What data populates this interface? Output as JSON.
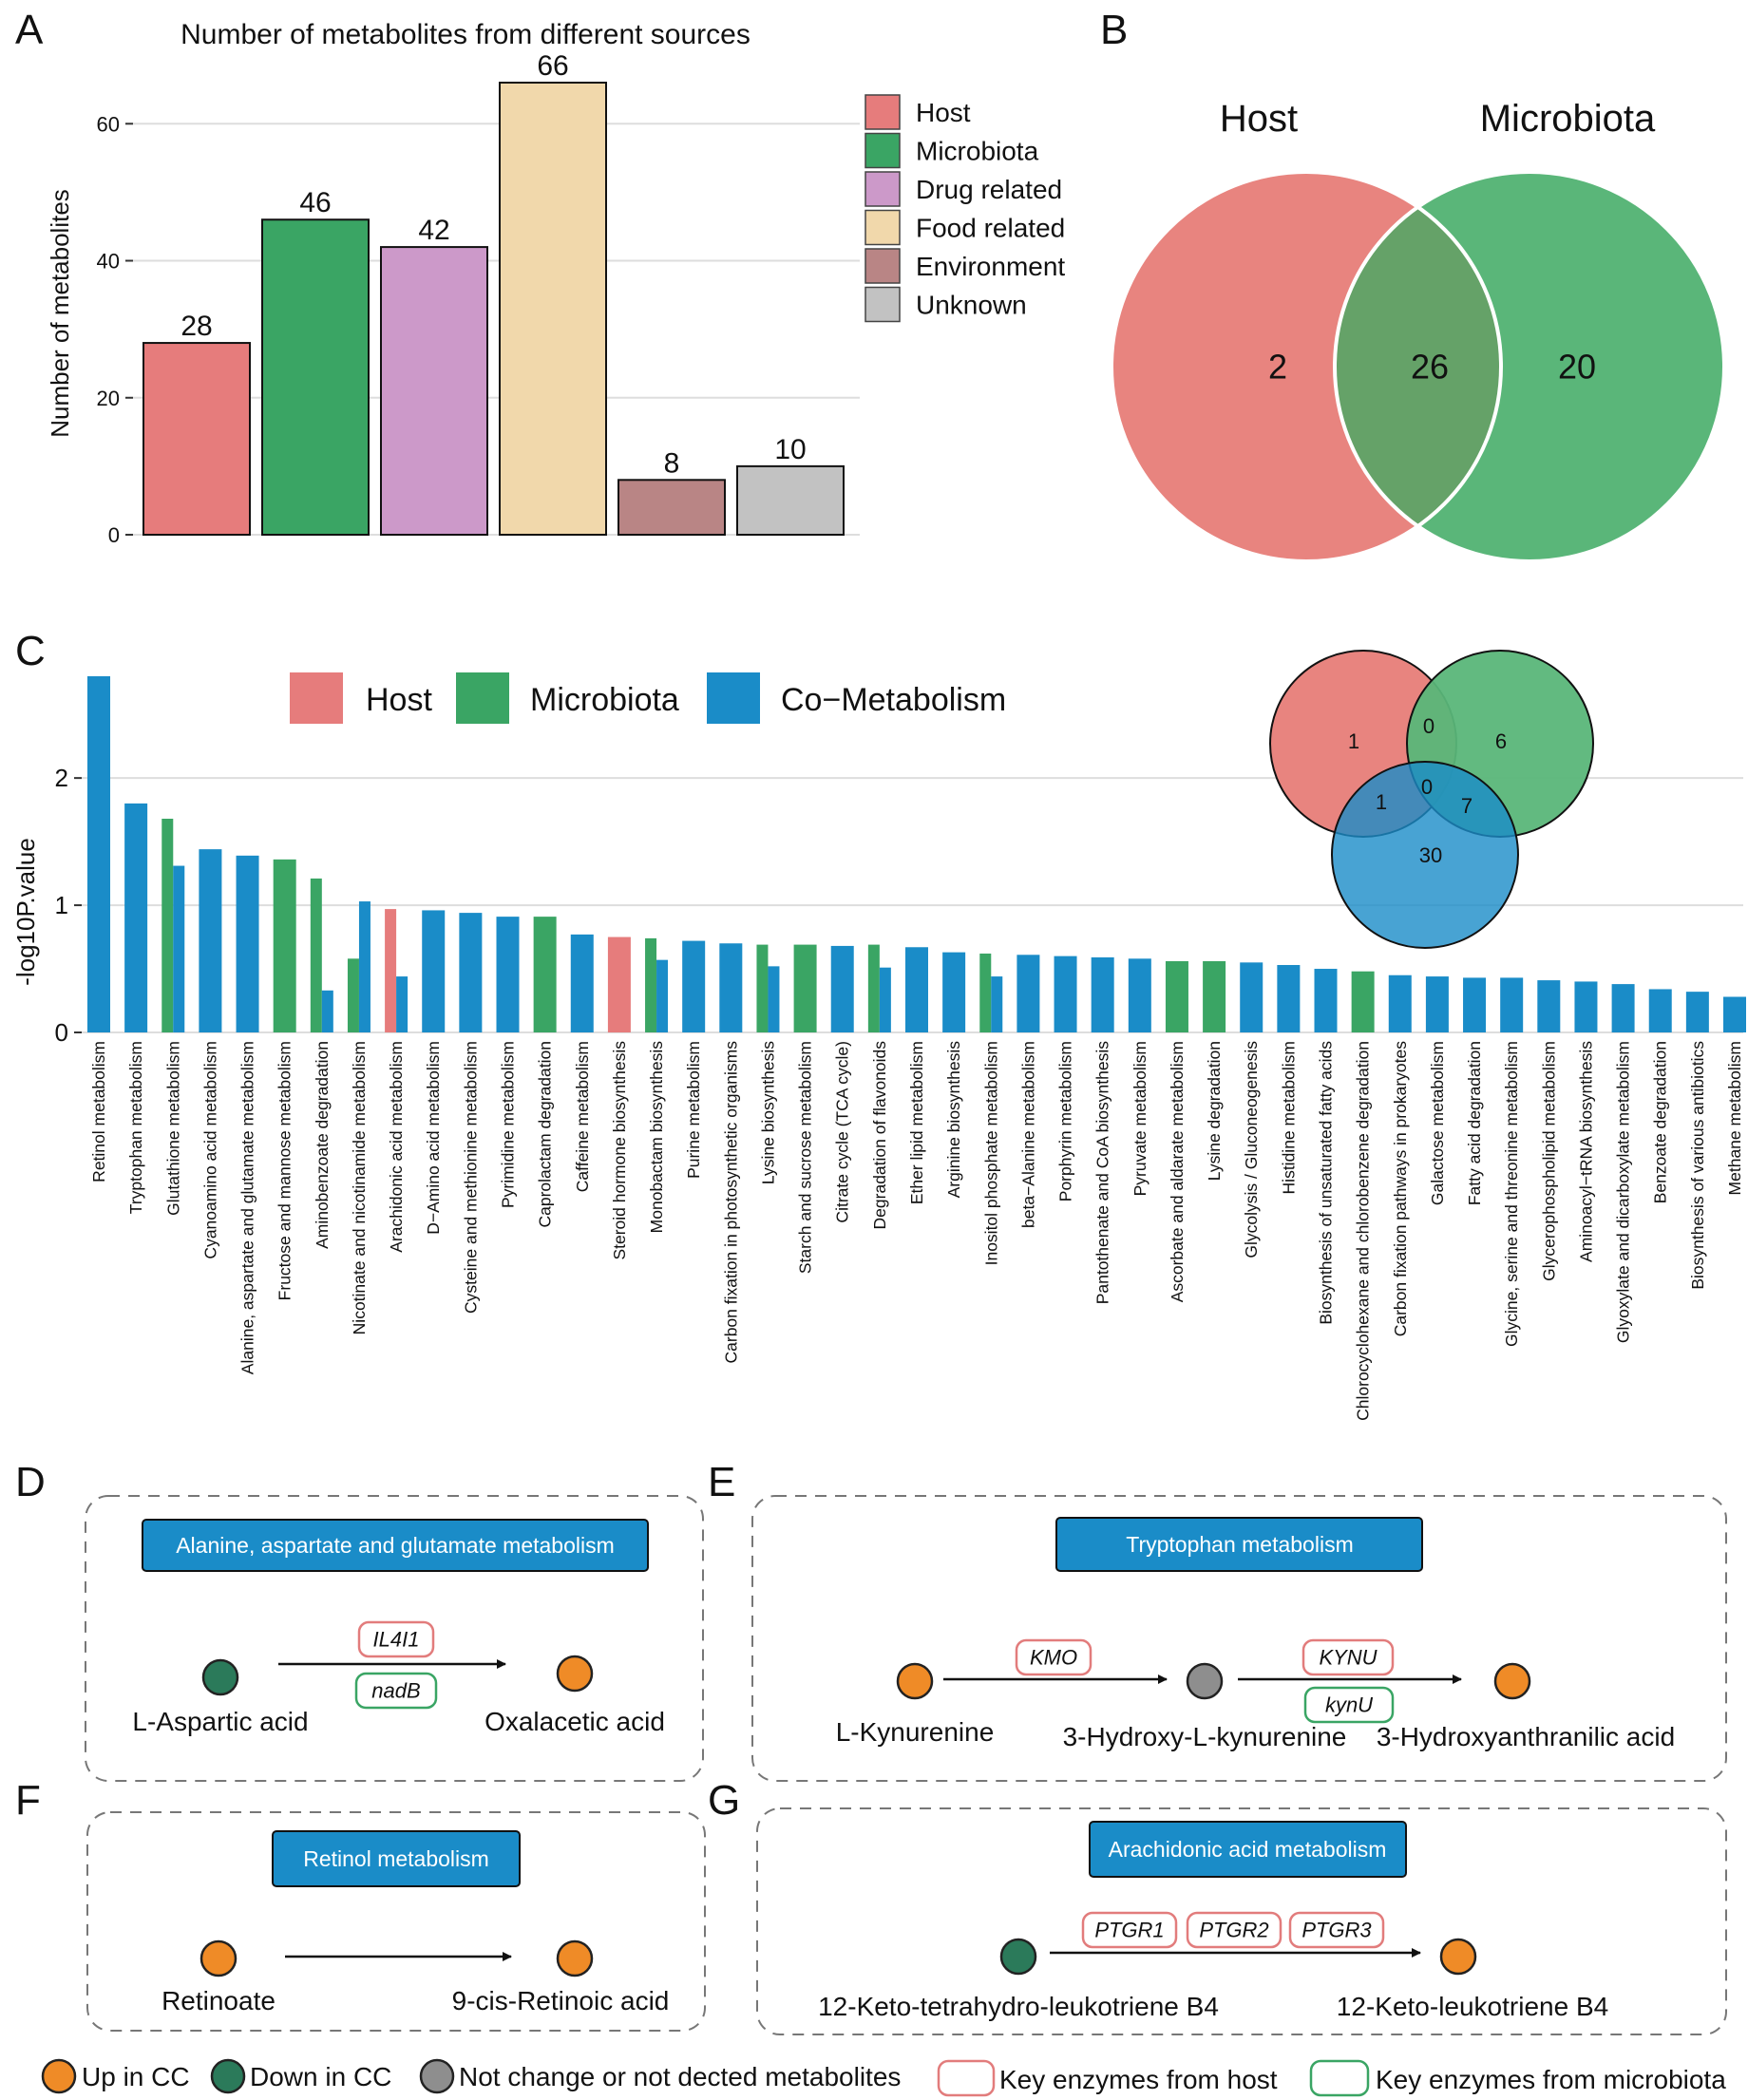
{
  "panels": {
    "a": "A",
    "b": "B",
    "c": "C",
    "d": "D",
    "e": "E",
    "f": "F",
    "g": "G"
  },
  "colors": {
    "host": "#e67c7c",
    "microbiota": "#3aa564",
    "drug": "#cc99c9",
    "food": "#f1d8ab",
    "environment": "#b98585",
    "unknown": "#c2c2c2",
    "co": "#1a8cc8",
    "up": "#ef8b27",
    "down": "#2b7a5a",
    "nochange": "#8e8e8e",
    "venn_host": "#e8847f",
    "venn_micro": "#5ab679",
    "venn_overlap": "#65a268"
  },
  "chart_data": [
    {
      "id": "A",
      "type": "bar",
      "title": "Number of metabolites from different sources",
      "ylabel": "Number of metabolites",
      "xlabel": "",
      "categories": [
        "Host",
        "Microbiota",
        "Drug related",
        "Food related",
        "Environment",
        "Unknown"
      ],
      "values": [
        28,
        46,
        42,
        66,
        8,
        10
      ],
      "ylim": [
        0,
        66
      ],
      "yticks": [
        0,
        20,
        40,
        60
      ],
      "legend": [
        "Host",
        "Microbiota",
        "Drug related",
        "Food related",
        "Environment",
        "Unknown"
      ],
      "legend_position": "right",
      "grid": true
    },
    {
      "id": "B",
      "type": "venn",
      "sets": [
        "Host",
        "Microbiota"
      ],
      "only_host": "2",
      "overlap": "26",
      "only_microbiota": "20"
    },
    {
      "id": "C",
      "type": "bar",
      "ylabel": "-log10P.value",
      "ylim": [
        0,
        2.8
      ],
      "yticks": [
        0,
        1,
        2
      ],
      "legend": [
        "Host",
        "Microbiota",
        "Co−Metabolism"
      ],
      "legend_position": "top",
      "grid": true,
      "categories": [
        "Retinol metabolism",
        "Tryptophan metabolism",
        "Glutathione metabolism",
        "Cyanoamino acid metabolism",
        "Alanine, aspartate and glutamate metabolism",
        "Fructose and mannose metabolism",
        "Aminobenzoate degradation",
        "Nicotinate and nicotinamide metabolism",
        "Arachidonic acid metabolism",
        "D−Amino acid metabolism",
        "Cysteine and methionine metabolism",
        "Pyrimidine metabolism",
        "Caprolactam degradation",
        "Caffeine metabolism",
        "Steroid hormone biosynthesis",
        "Monobactam biosynthesis",
        "Purine metabolism",
        "Carbon fixation in photosynthetic organisms",
        "Lysine biosynthesis",
        "Starch and sucrose metabolism",
        "Citrate cycle (TCA cycle)",
        "Degradation of flavonoids",
        "Ether lipid metabolism",
        "Arginine biosynthesis",
        "Inositol phosphate metabolism",
        "beta−Alanine metabolism",
        "Porphyrin metabolism",
        "Pantothenate and CoA biosynthesis",
        "Pyruvate metabolism",
        "Ascorbate and aldarate metabolism",
        "Lysine degradation",
        "Glycolysis / Gluconeogenesis",
        "Histidine metabolism",
        "Biosynthesis of unsaturated fatty acids",
        "Chlorocyclohexane and chlorobenzene degradation",
        "Carbon fixation pathways in prokaryotes",
        "Galactose metabolism",
        "Fatty acid degradation",
        "Glycine, serine and threonine metabolism",
        "Glycerophospholipid metabolism",
        "Aminoacyl−tRNA biosynthesis",
        "Glyoxylate and dicarboxylate metabolism",
        "Benzoate degradation",
        "Biosynthesis of various antibiotics",
        "Methane metabolism"
      ],
      "series": [
        {
          "name": "Host",
          "values": [
            null,
            null,
            null,
            null,
            null,
            null,
            null,
            null,
            0.97,
            null,
            null,
            null,
            null,
            null,
            0.75,
            null,
            null,
            null,
            null,
            null,
            null,
            null,
            null,
            null,
            null,
            null,
            null,
            null,
            null,
            null,
            null,
            null,
            null,
            null,
            null,
            null,
            null,
            null,
            null,
            null,
            null,
            null,
            null,
            null,
            null
          ]
        },
        {
          "name": "Microbiota",
          "values": [
            null,
            null,
            1.68,
            null,
            null,
            1.36,
            1.21,
            0.58,
            null,
            null,
            null,
            null,
            0.91,
            null,
            null,
            0.74,
            null,
            null,
            0.69,
            0.69,
            null,
            0.69,
            null,
            null,
            0.62,
            null,
            null,
            null,
            null,
            0.56,
            0.56,
            null,
            null,
            null,
            0.48,
            null,
            null,
            null,
            null,
            null,
            null,
            null,
            null,
            null,
            null
          ]
        },
        {
          "name": "Co−Metabolism",
          "values": [
            2.8,
            1.8,
            1.31,
            1.44,
            1.39,
            null,
            0.33,
            1.03,
            0.44,
            0.96,
            0.94,
            0.91,
            null,
            0.77,
            null,
            0.57,
            0.72,
            0.7,
            0.52,
            null,
            0.68,
            0.51,
            0.67,
            0.63,
            0.44,
            0.61,
            0.6,
            0.59,
            0.58,
            null,
            null,
            0.55,
            0.53,
            0.5,
            null,
            0.45,
            0.44,
            0.43,
            0.43,
            0.41,
            0.4,
            0.38,
            0.34,
            0.32,
            0.28
          ]
        }
      ]
    },
    {
      "id": "C-venn",
      "type": "venn",
      "sets": [
        "Host",
        "Microbiota",
        "Co−Metabolism"
      ],
      "host_only": "1",
      "host_micro": "0",
      "micro_only": "6",
      "all_three": "0",
      "host_co": "1",
      "micro_co": "7",
      "co_only": "30"
    }
  ],
  "pathways": {
    "d": {
      "title": "Alanine, aspartate and glutamate metabolism",
      "substrate": "L-Aspartic acid",
      "product": "Oxalacetic acid",
      "enzyme_host": "IL4I1",
      "enzyme_micro": "nadB"
    },
    "e": {
      "title": "Tryptophan metabolism",
      "m1": "L-Kynurenine",
      "m2": "3-Hydroxy-L-kynurenine",
      "m3": "3-Hydroxyanthranilic acid",
      "enzyme1": "KMO",
      "enzyme2_host": "KYNU",
      "enzyme2_micro": "kynU"
    },
    "f": {
      "title": "Retinol metabolism",
      "substrate": "Retinoate",
      "product": "9-cis-Retinoic acid"
    },
    "g": {
      "title": "Arachidonic acid metabolism",
      "substrate": "12-Keto-tetrahydro-leukotriene B4",
      "product": "12-Keto-leukotriene B4",
      "enzymes": [
        "PTGR1",
        "PTGR2",
        "PTGR3"
      ]
    }
  },
  "bottom_legend": {
    "up": "Up in CC",
    "down": "Down in CC",
    "nochange": "Not change or not dected metabolites",
    "host_enzyme": "Key enzymes from host",
    "micro_enzyme": "Key enzymes from microbiota"
  }
}
